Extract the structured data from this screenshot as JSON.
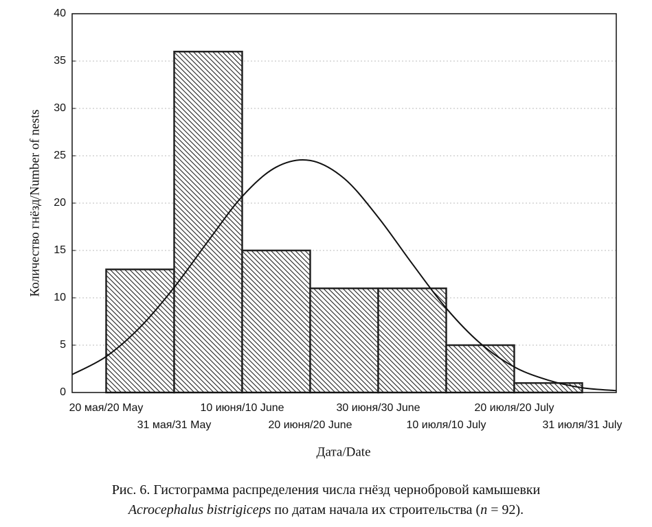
{
  "chart_data": {
    "type": "histogram",
    "ylabel": "Количество гнёзд/Number of nests",
    "xlabel": "Дата/Date",
    "bins": [
      "20 мая/20 May",
      "31 мая/31 May",
      "10 июня/10 June",
      "20 июня/20 June",
      "30 июня/30 June",
      "10 июля/10 July",
      "20 июля/20 July",
      "31 июля/31 July"
    ],
    "values": [
      13,
      36,
      15,
      11,
      11,
      5,
      1
    ],
    "color": "#222222",
    "xlim": [
      -0.5,
      7.5
    ],
    "ylim": [
      0,
      40
    ],
    "yticks": [
      0,
      5,
      10,
      15,
      20,
      25,
      30,
      35,
      40
    ],
    "grid": true,
    "curve": {
      "x": [
        -0.5,
        0,
        0.5,
        1,
        1.5,
        2,
        2.5,
        3,
        3.5,
        4,
        4.5,
        5,
        5.5,
        6,
        6.5,
        7,
        7.5
      ],
      "values": [
        1.9,
        3.8,
        6.9,
        11.1,
        16.0,
        20.7,
        23.8,
        24.5,
        22.6,
        18.5,
        13.6,
        8.9,
        5.2,
        2.7,
        1.3,
        0.5,
        0.2
      ]
    },
    "caption": {
      "line1": "Рис. 6. Гистограмма распределения числа гнёзд чернобровой камышевки",
      "line2": [
        "Acrocephalus bistrigiceps",
        " по датам начала их строительства (",
        "n",
        " = 92)."
      ]
    }
  }
}
